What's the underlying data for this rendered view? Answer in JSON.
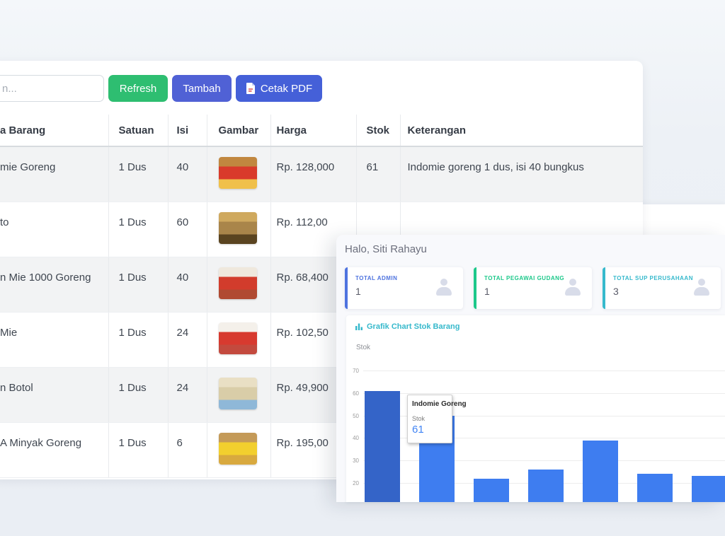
{
  "toolbar": {
    "search_placeholder": "n...",
    "refresh_label": "Refresh",
    "tambah_label": "Tambah",
    "cetak_label": "Cetak PDF"
  },
  "table": {
    "columns": [
      "a Barang",
      "Satuan",
      "Isi",
      "Gambar",
      "Harga",
      "Stok",
      "Keterangan"
    ],
    "rows": [
      {
        "name": "mie Goreng",
        "satuan": "1 Dus",
        "isi": "40",
        "harga": "Rp. 128,000",
        "stok": "61",
        "keterangan": "Indomie goreng 1 dus, isi 40 bungkus",
        "img": [
          "#c1873f",
          "#d93a2b",
          "#f0c04a"
        ]
      },
      {
        "name": "to",
        "satuan": "1 Dus",
        "isi": "60",
        "harga": "Rp. 112,00",
        "stok": "",
        "keterangan": "",
        "img": [
          "#cfa95e",
          "#a9854a",
          "#5a4420"
        ]
      },
      {
        "name": "n Mie 1000 Goreng",
        "satuan": "1 Dus",
        "isi": "40",
        "harga": "Rp. 68,400",
        "stok": "",
        "keterangan": "",
        "img": [
          "#efe8dd",
          "#d23c2c",
          "#b04a32"
        ]
      },
      {
        "name": "Mie",
        "satuan": "1 Dus",
        "isi": "24",
        "harga": "Rp. 102,50",
        "stok": "",
        "keterangan": "",
        "img": [
          "#f4f0ea",
          "#d73a2f",
          "#c34a3e"
        ]
      },
      {
        "name": "n Botol",
        "satuan": "1 Dus",
        "isi": "24",
        "harga": "Rp. 49,900",
        "stok": "",
        "keterangan": "",
        "img": [
          "#e9dfc4",
          "#d9cda8",
          "#8fb8d8"
        ]
      },
      {
        "name": "A Minyak Goreng",
        "satuan": "1 Dus",
        "isi": "6",
        "harga": "Rp. 195,00",
        "stok": "",
        "keterangan": "",
        "img": [
          "#c49a58",
          "#f2cf2e",
          "#d8a93f"
        ]
      }
    ]
  },
  "dashboard": {
    "greeting": "Halo, Siti Rahayu",
    "stats": [
      {
        "label": "TOTAL ADMIN",
        "value": "1",
        "accent": "#4e73df"
      },
      {
        "label": "TOTAL PEGAWAI GUDANG",
        "value": "1",
        "accent": "#1cc88a"
      },
      {
        "label": "TOTAL SUP PERUSAHAAN",
        "value": "3",
        "accent": "#36b9cc"
      }
    ],
    "chart_title": "Grafik Chart Stok Barang",
    "tooltip": {
      "title": "Indomie Goreng",
      "label": "Stok",
      "value": "61"
    }
  },
  "chart_data": {
    "type": "bar",
    "title": "Grafik Chart Stok Barang",
    "ylabel": "Stok",
    "categories": [
      "Indomie Goreng",
      "",
      "",
      "",
      "",
      "",
      ""
    ],
    "values": [
      61,
      50,
      22,
      26,
      39,
      24,
      23
    ],
    "yticks": [
      70,
      60,
      50,
      40,
      30,
      20
    ],
    "ylim_visible": [
      12,
      72
    ],
    "grid": true,
    "legend": "none",
    "bar_color": "#3e7df0",
    "bar_color_highlight": "#3464c8",
    "highlighted_index": 0,
    "tooltip": {
      "title": "Indomie Goreng",
      "label": "Stok",
      "value": 61
    },
    "note": "x-axis labels and chart bottom clipped by panel edge"
  }
}
